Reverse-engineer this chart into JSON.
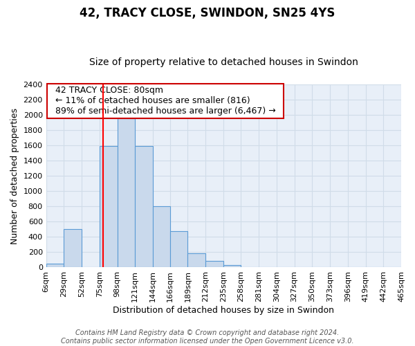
{
  "title": "42, TRACY CLOSE, SWINDON, SN25 4YS",
  "subtitle": "Size of property relative to detached houses in Swindon",
  "xlabel": "Distribution of detached houses by size in Swindon",
  "ylabel": "Number of detached properties",
  "bin_edges": [
    6,
    29,
    52,
    75,
    98,
    121,
    144,
    166,
    189,
    212,
    235,
    258,
    281,
    304,
    327,
    350,
    373,
    396,
    419,
    442,
    465
  ],
  "bar_heights": [
    50,
    500,
    0,
    1590,
    1950,
    1590,
    800,
    480,
    190,
    90,
    30,
    0,
    0,
    0,
    0,
    0,
    0,
    0,
    0,
    0
  ],
  "bar_color": "#c9d9ec",
  "bar_edge_color": "#5b9bd5",
  "red_line_x": 80,
  "ylim": [
    0,
    2400
  ],
  "yticks": [
    0,
    200,
    400,
    600,
    800,
    1000,
    1200,
    1400,
    1600,
    1800,
    2000,
    2200,
    2400
  ],
  "annotation_title": "42 TRACY CLOSE: 80sqm",
  "annotation_line1": "← 11% of detached houses are smaller (816)",
  "annotation_line2": "89% of semi-detached houses are larger (6,467) →",
  "annotation_box_color": "#ffffff",
  "annotation_box_edge_color": "#cc0000",
  "footer_line1": "Contains HM Land Registry data © Crown copyright and database right 2024.",
  "footer_line2": "Contains public sector information licensed under the Open Government Licence v3.0.",
  "title_fontsize": 12,
  "subtitle_fontsize": 10,
  "axis_label_fontsize": 9,
  "tick_fontsize": 8,
  "annotation_fontsize": 9,
  "footer_fontsize": 7,
  "background_color": "#ffffff",
  "grid_color": "#d0dce8",
  "plot_bg_color": "#e8eff8"
}
